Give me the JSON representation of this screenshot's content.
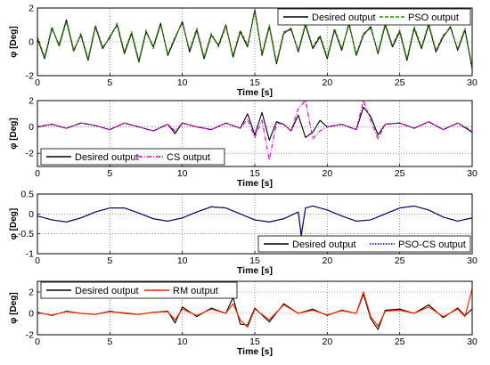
{
  "chart_data": [
    {
      "type": "line",
      "xlabel": "Time [s]",
      "ylabel": "φ [Deg]",
      "xlim": [
        0,
        30
      ],
      "ylim": [
        -2,
        2
      ],
      "xticks": [
        0,
        5,
        10,
        15,
        20,
        25,
        30
      ],
      "yticks": [
        -2,
        0,
        2
      ],
      "xtick_labels": [
        "0",
        "5",
        "10",
        "15",
        "20",
        "25",
        "30"
      ],
      "ytick_labels": [
        "-2",
        "0",
        "2"
      ],
      "grid": true,
      "legend_position": "top-right",
      "series": [
        {
          "name": "Desired output",
          "color": "#000000",
          "dash": "solid",
          "x": [
            0,
            0.5,
            1,
            1.5,
            2,
            2.5,
            3,
            3.5,
            4,
            4.5,
            5,
            5.5,
            6,
            6.5,
            7,
            7.5,
            8,
            8.5,
            9,
            9.5,
            10,
            10.5,
            11,
            11.5,
            12,
            12.5,
            13,
            13.5,
            14,
            14.5,
            15,
            15.5,
            16,
            16.5,
            17,
            17.5,
            18,
            18.5,
            19,
            19.5,
            20,
            20.5,
            21,
            21.5,
            22,
            22.5,
            23,
            23.5,
            24,
            24.5,
            25,
            25.5,
            26,
            26.5,
            27,
            27.5,
            28,
            28.5,
            29,
            29.5,
            30
          ],
          "values": [
            0.2,
            -1.0,
            0.8,
            -0.2,
            1.3,
            -0.5,
            0.4,
            -1.1,
            0.9,
            -0.4,
            0.3,
            1.0,
            -0.7,
            0.5,
            -1.2,
            0.6,
            -0.3,
            1.1,
            -0.8,
            0.2,
            1.2,
            -0.6,
            0.7,
            -1.0,
            0.4,
            -0.2,
            1.0,
            -0.9,
            0.6,
            -0.3,
            1.9,
            -0.8,
            0.9,
            -1.3,
            0.5,
            0.8,
            -0.6,
            1.0,
            -0.4,
            0.3,
            -1.0,
            0.7,
            -0.5,
            1.1,
            -0.8,
            0.4,
            0.9,
            -0.7,
            1.0,
            -0.3,
            0.6,
            -1.1,
            0.8,
            -0.4,
            1.0,
            -0.6,
            0.3,
            0.9,
            -0.5,
            0.7,
            -1.6
          ]
        },
        {
          "name": "PSO output",
          "color": "#2e8b00",
          "dash": "dashed",
          "x": [
            0,
            0.5,
            1,
            1.5,
            2,
            2.5,
            3,
            3.5,
            4,
            4.5,
            5,
            5.5,
            6,
            6.5,
            7,
            7.5,
            8,
            8.5,
            9,
            9.5,
            10,
            10.5,
            11,
            11.5,
            12,
            12.5,
            13,
            13.5,
            14,
            14.5,
            15,
            15.5,
            16,
            16.5,
            17,
            17.5,
            18,
            18.5,
            19,
            19.5,
            20,
            20.5,
            21,
            21.5,
            22,
            22.5,
            23,
            23.5,
            24,
            24.5,
            25,
            25.5,
            26,
            26.5,
            27,
            27.5,
            28,
            28.5,
            29,
            29.5,
            30
          ],
          "values": [
            0.3,
            -0.9,
            0.9,
            -0.3,
            1.2,
            -0.6,
            0.5,
            -1.0,
            1.0,
            -0.3,
            0.2,
            1.1,
            -0.6,
            0.6,
            -1.1,
            0.7,
            -0.4,
            1.0,
            -0.7,
            0.3,
            1.1,
            -0.5,
            0.8,
            -0.9,
            0.5,
            -0.3,
            0.9,
            -0.8,
            0.7,
            -0.2,
            1.8,
            -0.7,
            1.0,
            -1.2,
            0.6,
            0.7,
            -0.5,
            1.1,
            -0.3,
            0.4,
            -0.9,
            0.8,
            -0.4,
            1.0,
            -0.7,
            0.5,
            0.8,
            -0.6,
            1.1,
            -0.2,
            0.7,
            -1.0,
            0.9,
            -0.3,
            1.1,
            -0.5,
            0.4,
            0.8,
            -0.4,
            0.8,
            -1.5
          ]
        }
      ]
    },
    {
      "type": "line",
      "xlabel": "Time [s]",
      "ylabel": "φ [Deg]",
      "xlim": [
        0,
        30
      ],
      "ylim": [
        -3,
        2
      ],
      "xticks": [
        0,
        5,
        10,
        15,
        20,
        25,
        30
      ],
      "yticks": [
        -2,
        0,
        2
      ],
      "xtick_labels": [
        "0",
        "5",
        "10",
        "15",
        "20",
        "25",
        "30"
      ],
      "ytick_labels": [
        "-2",
        "0",
        "2"
      ],
      "grid": true,
      "legend_position": "bottom-left",
      "series": [
        {
          "name": "Desired output",
          "color": "#000000",
          "dash": "solid",
          "x": [
            0,
            1,
            2,
            3,
            4,
            5,
            6,
            7,
            8,
            9,
            9.5,
            10,
            11,
            12,
            13,
            14,
            14.5,
            15,
            15.5,
            16,
            16.5,
            17,
            17.5,
            18,
            18.5,
            19,
            19.5,
            20,
            21,
            22,
            22.5,
            23,
            23.5,
            24,
            25,
            26,
            27,
            28,
            29,
            30
          ],
          "values": [
            0,
            0.2,
            -0.1,
            0.3,
            0.1,
            -0.2,
            0.3,
            0.0,
            -0.3,
            0.2,
            -0.5,
            0.3,
            0.0,
            -0.2,
            0.3,
            -0.1,
            1.0,
            -0.6,
            1.1,
            -1.0,
            0.4,
            0.2,
            -0.3,
            0.9,
            -0.8,
            -0.4,
            0.5,
            0.0,
            0.2,
            -0.2,
            1.5,
            0.8,
            -0.6,
            0.2,
            0.3,
            -0.1,
            0.4,
            -0.2,
            0.3,
            -0.4
          ]
        },
        {
          "name": "CS output",
          "color": "#e000e0",
          "dash": "dashdot",
          "x": [
            0,
            1,
            2,
            3,
            4,
            5,
            6,
            7,
            8,
            9,
            9.5,
            10,
            11,
            12,
            13,
            14,
            14.5,
            15,
            15.5,
            16,
            16.5,
            17,
            17.5,
            18,
            18.5,
            19,
            19.5,
            20,
            21,
            22,
            22.5,
            23,
            23.5,
            24,
            25,
            26,
            27,
            28,
            29,
            30
          ],
          "values": [
            0,
            0.2,
            -0.1,
            0.3,
            0.1,
            -0.2,
            0.3,
            0.0,
            -0.3,
            0.2,
            -0.3,
            0.3,
            0.0,
            -0.2,
            0.3,
            -0.1,
            0.6,
            -0.8,
            0.5,
            -2.5,
            0.3,
            0.2,
            -0.3,
            1.4,
            2.0,
            -0.9,
            -0.3,
            0.0,
            0.2,
            -0.2,
            2.2,
            0.5,
            -0.9,
            0.2,
            0.3,
            -0.1,
            0.4,
            -0.2,
            0.3,
            -0.3
          ]
        }
      ]
    },
    {
      "type": "line",
      "xlabel": "Time [s]",
      "ylabel": "φ [Deg]",
      "xlim": [
        0,
        30
      ],
      "ylim": [
        -1,
        0.5
      ],
      "xticks": [
        0,
        5,
        10,
        15,
        20,
        25,
        30
      ],
      "yticks": [
        -1,
        -0.5,
        0,
        0.5
      ],
      "xtick_labels": [
        "0",
        "5",
        "10",
        "15",
        "20",
        "25",
        "30"
      ],
      "ytick_labels": [
        "-1",
        "-0.5",
        "0",
        "0.5"
      ],
      "grid": true,
      "legend_position": "bottom-right",
      "series": [
        {
          "name": "Desired output",
          "color": "#000000",
          "dash": "solid",
          "x": [
            0,
            1,
            2,
            3,
            4,
            5,
            6,
            7,
            8,
            9,
            10,
            11,
            12,
            13,
            14,
            15,
            16,
            17,
            18,
            18.2,
            18.5,
            19,
            20,
            21,
            22,
            23,
            24,
            25,
            26,
            27,
            28,
            29,
            30
          ],
          "values": [
            -0.05,
            -0.15,
            -0.2,
            -0.1,
            0.05,
            0.15,
            0.15,
            0.02,
            -0.12,
            -0.18,
            -0.1,
            0.05,
            0.18,
            0.15,
            0.0,
            -0.15,
            -0.2,
            -0.12,
            0.05,
            -0.55,
            0.15,
            0.2,
            0.1,
            -0.05,
            -0.18,
            -0.15,
            0.0,
            0.15,
            0.2,
            0.1,
            -0.08,
            -0.18,
            -0.1
          ]
        },
        {
          "name": "PSO-CS output",
          "color": "#0000cc",
          "dash": "dotted",
          "x": [
            0,
            1,
            2,
            3,
            4,
            5,
            6,
            7,
            8,
            9,
            10,
            11,
            12,
            13,
            14,
            15,
            16,
            17,
            18,
            18.2,
            18.5,
            19,
            20,
            21,
            22,
            23,
            24,
            25,
            26,
            27,
            28,
            29,
            30
          ],
          "values": [
            -0.05,
            -0.15,
            -0.2,
            -0.1,
            0.05,
            0.15,
            0.15,
            0.02,
            -0.12,
            -0.18,
            -0.1,
            0.05,
            0.18,
            0.15,
            0.0,
            -0.15,
            -0.2,
            -0.12,
            0.05,
            -0.5,
            0.15,
            0.2,
            0.1,
            -0.05,
            -0.18,
            -0.15,
            0.0,
            0.15,
            0.2,
            0.1,
            -0.08,
            -0.18,
            -0.1
          ]
        }
      ]
    },
    {
      "type": "line",
      "xlabel": "Time [s]",
      "ylabel": "φ [Deg]",
      "xlim": [
        0,
        30
      ],
      "ylim": [
        -2,
        3
      ],
      "xticks": [
        0,
        5,
        10,
        15,
        20,
        25,
        30
      ],
      "yticks": [
        -2,
        0,
        2
      ],
      "xtick_labels": [
        "0",
        "5",
        "10",
        "15",
        "20",
        "25",
        "30"
      ],
      "ytick_labels": [
        "-2",
        "0",
        "2"
      ],
      "grid": true,
      "legend_position": "top-left",
      "series": [
        {
          "name": "Desired output",
          "color": "#000000",
          "dash": "solid",
          "x": [
            0,
            1,
            2,
            3,
            4,
            5,
            6,
            7,
            8,
            9,
            9.5,
            10,
            11,
            12,
            13,
            13.5,
            14,
            14.5,
            15,
            16,
            17,
            18,
            19,
            20,
            21,
            22,
            22.5,
            23,
            23.5,
            24,
            25,
            26,
            27,
            28,
            29,
            29.5,
            30
          ],
          "values": [
            0.1,
            -0.2,
            0.2,
            0.0,
            -0.1,
            0.2,
            0.0,
            -0.1,
            0.1,
            0.2,
            -0.9,
            0.6,
            -0.3,
            0.5,
            0.0,
            1.5,
            -1.0,
            -1.1,
            0.5,
            -0.8,
            0.9,
            0.0,
            0.4,
            -0.2,
            0.3,
            0.0,
            1.8,
            -0.5,
            -1.5,
            0.3,
            0.4,
            0.0,
            0.8,
            -0.4,
            0.5,
            -0.2,
            0.4
          ]
        },
        {
          "name": "RM output",
          "color": "#ff2a00",
          "dash": "solid",
          "x": [
            0,
            1,
            2,
            3,
            4,
            5,
            6,
            7,
            8,
            9,
            9.5,
            10,
            11,
            12,
            13,
            13.5,
            14,
            14.5,
            15,
            16,
            17,
            18,
            19,
            20,
            21,
            22,
            22.5,
            23,
            23.5,
            24,
            25,
            26,
            27,
            28,
            29,
            29.5,
            30
          ],
          "values": [
            0.05,
            -0.15,
            0.15,
            0.0,
            -0.1,
            0.15,
            0.05,
            -0.1,
            0.1,
            0.15,
            -0.6,
            0.4,
            -0.2,
            0.4,
            0.0,
            0.9,
            -0.6,
            -1.3,
            0.4,
            -0.6,
            0.8,
            0.0,
            0.3,
            -0.15,
            0.25,
            0.0,
            2.0,
            -0.3,
            -1.2,
            0.2,
            0.3,
            0.0,
            0.6,
            -0.3,
            0.4,
            -0.3,
            2.3
          ]
        }
      ]
    }
  ]
}
